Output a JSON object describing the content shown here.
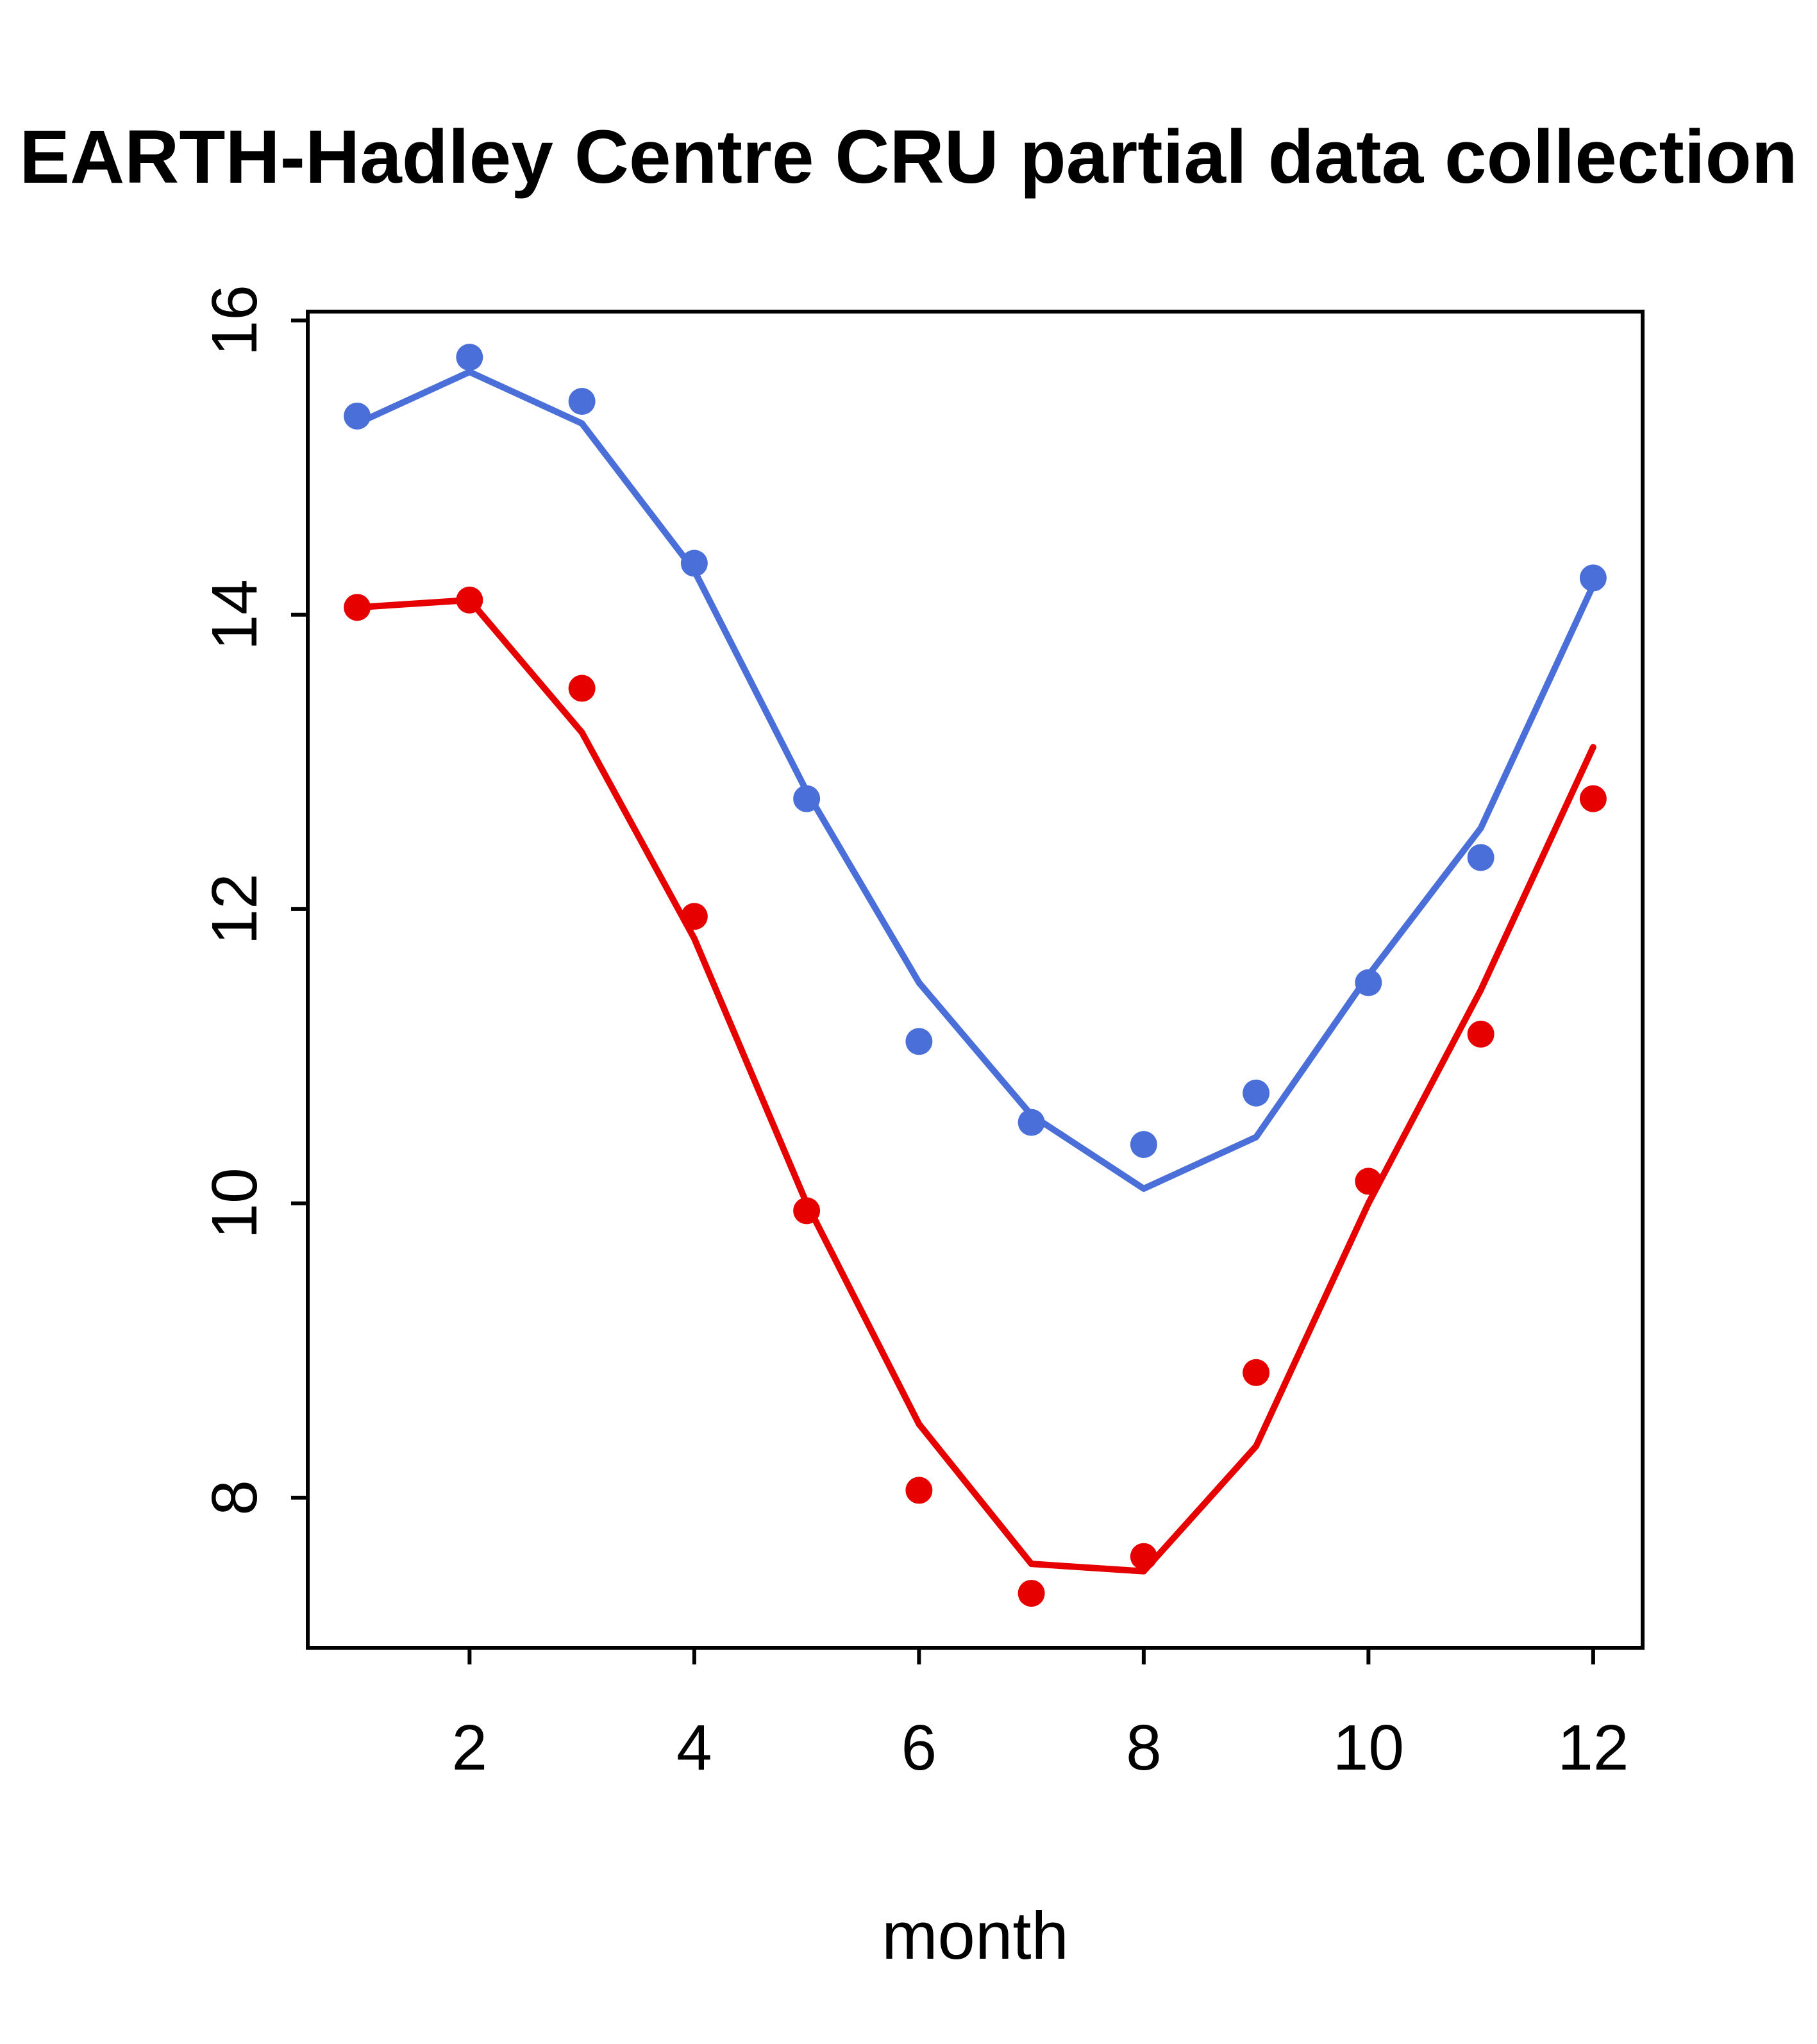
{
  "page": {
    "background": "#ffffff"
  },
  "chart_data": {
    "type": "line",
    "title": "EARTH-Hadley Centre  CRU partial data collection",
    "xlabel": "month",
    "ylabel": "",
    "x": [
      1,
      2,
      3,
      4,
      5,
      6,
      7,
      8,
      9,
      10,
      11,
      12
    ],
    "xlim": [
      0.56,
      12.44
    ],
    "ylim": [
      6.98,
      16.06
    ],
    "xticks": [
      2,
      4,
      6,
      8,
      10,
      12
    ],
    "yticks": [
      8,
      10,
      12,
      14,
      16
    ],
    "grid": false,
    "legend": "none",
    "series": [
      {
        "name": "blue-series",
        "color": "#4a6fd8",
        "line": [
          15.3,
          15.65,
          15.3,
          14.3,
          12.8,
          11.5,
          10.6,
          10.1,
          10.45,
          11.55,
          12.55,
          14.2
        ],
        "points": [
          15.35,
          15.75,
          15.45,
          14.35,
          12.75,
          11.1,
          10.55,
          10.4,
          10.75,
          11.5,
          12.35,
          14.25
        ]
      },
      {
        "name": "red-series",
        "color": "#e60000",
        "line": [
          14.05,
          14.1,
          13.2,
          11.8,
          10.0,
          8.5,
          7.55,
          7.5,
          8.35,
          10.0,
          11.45,
          13.1
        ],
        "points": [
          14.05,
          14.1,
          13.5,
          11.95,
          9.95,
          8.05,
          7.35,
          7.6,
          8.85,
          10.15,
          11.15,
          12.75
        ]
      }
    ]
  }
}
